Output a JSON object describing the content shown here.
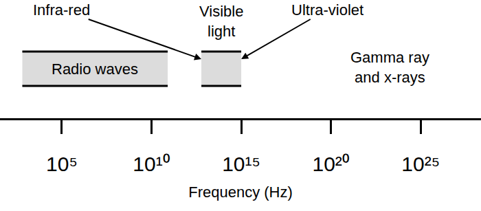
{
  "chart_data": {
    "type": "band",
    "x_label": "Frequency (Hz)",
    "log": "x",
    "xlim": [
      36,
      2.3e+28
    ],
    "xticks": [
      {
        "value": 100000,
        "label": "10⁵"
      },
      {
        "value": 10000000000,
        "label": "10¹⁰"
      },
      {
        "value": 1000000000000000.0,
        "label": "10¹⁵"
      },
      {
        "value": 1e+20,
        "label": "10²⁰"
      },
      {
        "value": 1e+25,
        "label": "10²⁵"
      }
    ],
    "color": "#dcdcdc",
    "bands": [
      {
        "name": "Radio waves",
        "low": 630,
        "high": 80000000000
      },
      {
        "name": "Visible light",
        "low": 6000000000000,
        "high": 1000000000000000.0
      }
    ],
    "annotations": [
      {
        "text": "Infra-red",
        "x": 6000000000000
      },
      {
        "text": "Ultra-violet",
        "x": 1000000000000000.0
      },
      {
        "text": "Gamma ray and x-rays",
        "x": 2e+23
      }
    ]
  }
}
